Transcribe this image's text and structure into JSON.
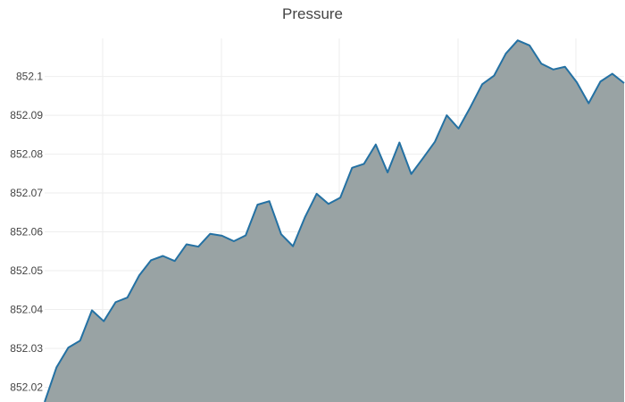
{
  "chart_data": {
    "type": "area",
    "title": "Pressure",
    "xlabel": "",
    "ylabel": "",
    "ylim": [
      852.0162,
      852.1098
    ],
    "yticks": [
      852.02,
      852.03,
      852.04,
      852.05,
      852.06,
      852.07,
      852.08,
      852.09,
      852.1
    ],
    "grid": true,
    "legend": "none",
    "colors": {
      "line": "#2471a3",
      "fill": "#99a3a4",
      "grid": "#eeeeee"
    },
    "series": [
      {
        "values": [
          852.0162,
          852.0251,
          852.0302,
          852.032,
          852.0398,
          852.037,
          852.0419,
          852.0431,
          852.0488,
          852.0527,
          852.0538,
          852.0525,
          852.0568,
          852.0562,
          852.0595,
          852.059,
          852.0576,
          852.0591,
          852.067,
          852.0679,
          852.0594,
          852.0563,
          852.0637,
          852.0698,
          852.0672,
          852.0688,
          852.0765,
          852.0775,
          852.0825,
          852.0753,
          852.083,
          852.0749,
          852.079,
          852.0832,
          852.09,
          852.0866,
          852.0921,
          852.098,
          852.1002,
          852.1059,
          852.1093,
          852.108,
          852.1033,
          852.1018,
          852.1025,
          852.0985,
          852.0931,
          852.0987,
          852.1007,
          852.0983
        ]
      }
    ]
  }
}
